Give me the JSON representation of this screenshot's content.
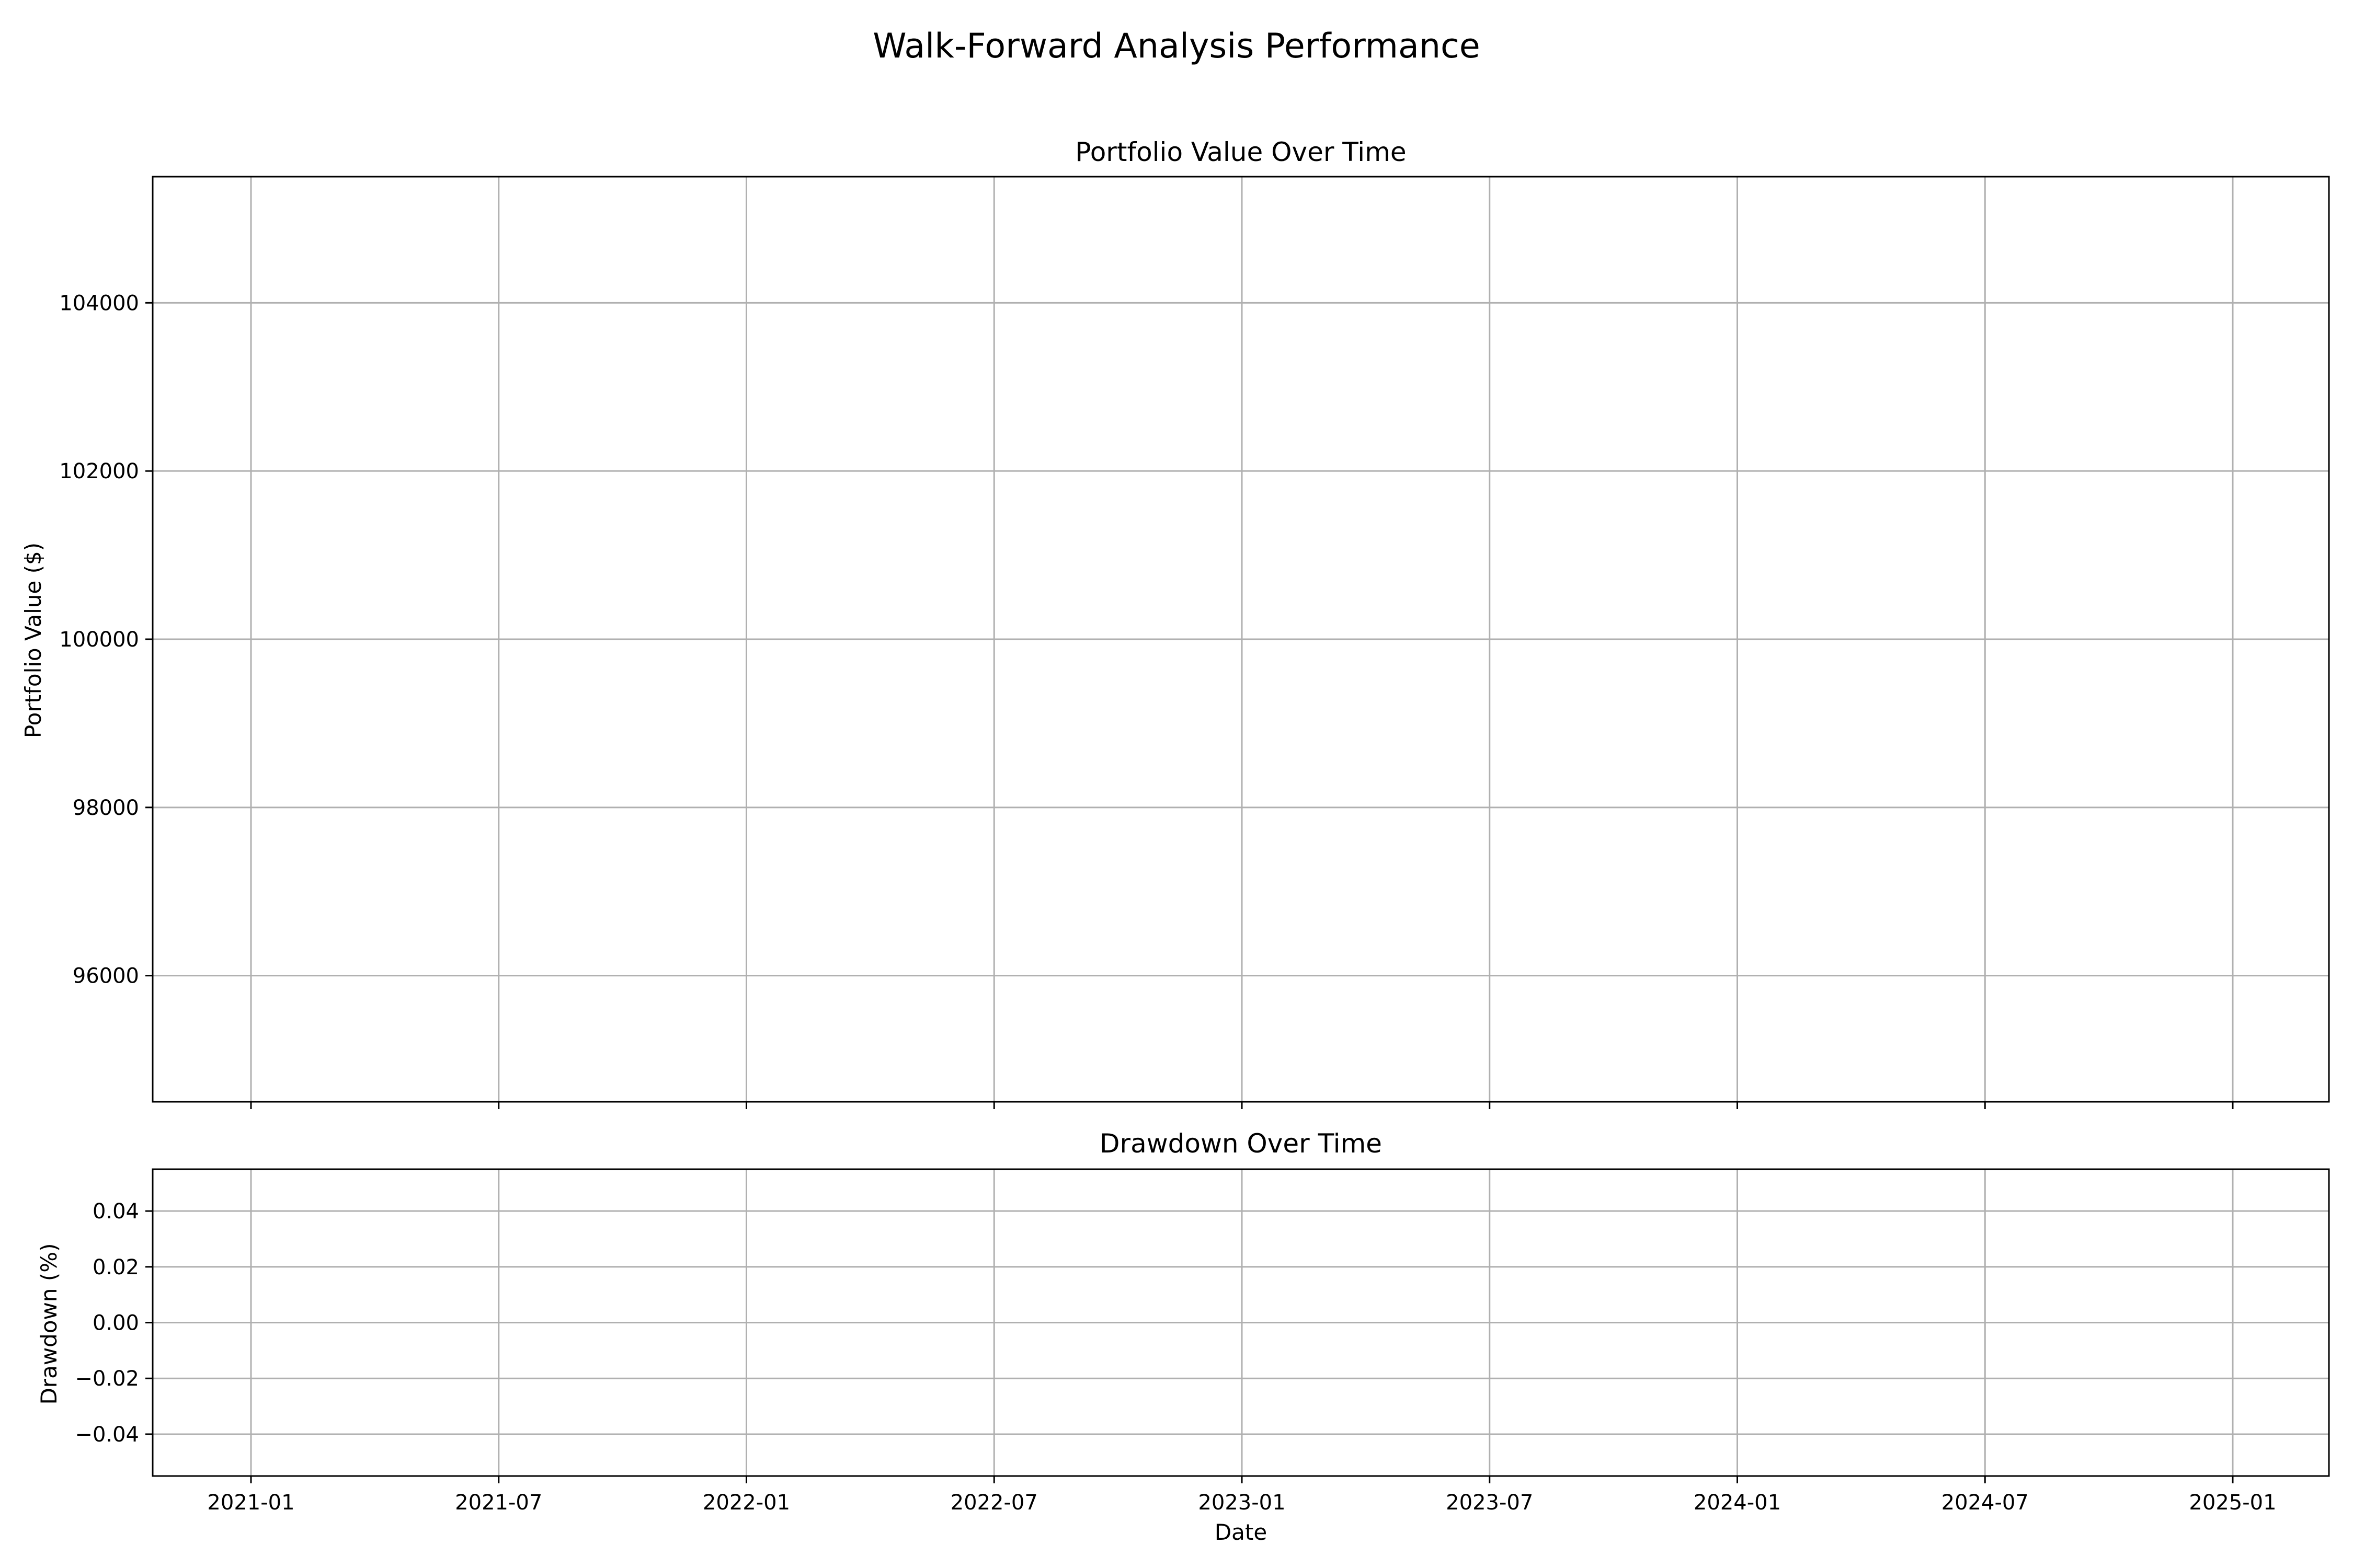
{
  "chart_data": {
    "suptitle": "Walk-Forward Analysis Performance",
    "xlabel": "Date",
    "x_ticks": [
      "2021-01",
      "2021-07",
      "2022-01",
      "2022-07",
      "2023-01",
      "2023-07",
      "2024-01",
      "2024-07",
      "2025-01"
    ],
    "grid": true,
    "panels": [
      {
        "type": "line",
        "title": "Portfolio Value Over Time",
        "ylabel": "Portfolio Value ($)",
        "ylim": [
          94500,
          105500
        ],
        "y_ticks": [
          96000,
          98000,
          100000,
          102000,
          104000
        ],
        "y_tick_labels": [
          "96000",
          "98000",
          "100000",
          "102000",
          "104000"
        ],
        "series": []
      },
      {
        "type": "area",
        "title": "Drawdown Over Time",
        "ylabel": "Drawdown (%)",
        "ylim": [
          -0.055,
          0.055
        ],
        "y_ticks": [
          -0.04,
          -0.02,
          0.0,
          0.02,
          0.04
        ],
        "y_tick_labels": [
          "−0.04",
          "−0.02",
          "0.00",
          "0.02",
          "0.04"
        ],
        "series": []
      }
    ]
  }
}
